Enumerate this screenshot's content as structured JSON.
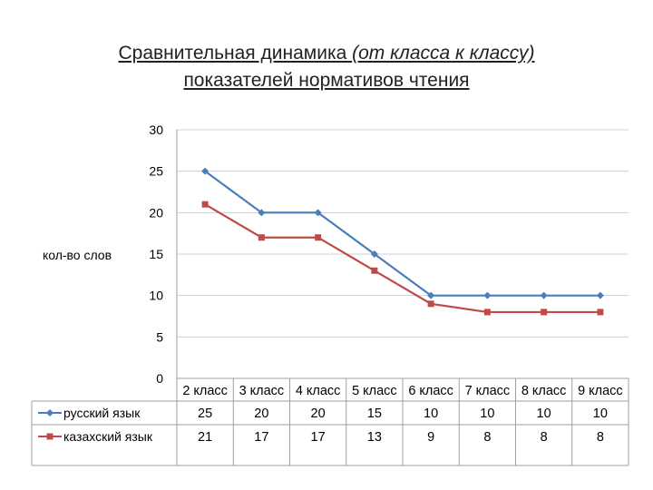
{
  "title": {
    "line1_main": "Сравнительная динамика ",
    "line1_italic": "(от класса к классу)",
    "line2": "показателей нормативов чтения"
  },
  "chart_data": {
    "type": "line",
    "ylabel": "кол-во слов",
    "ylim": [
      0,
      30
    ],
    "yticks": [
      0,
      5,
      10,
      15,
      20,
      25,
      30
    ],
    "grid": "horizontal",
    "legend": "data-table-left",
    "categories": [
      "2 класс",
      "3 класс",
      "4 класс",
      "5 класс",
      "6 класс",
      "7 класс",
      "8 класс",
      "9 класс"
    ],
    "series": [
      {
        "name": "русский язык",
        "values": [
          25,
          20,
          20,
          15,
          10,
          10,
          10,
          10
        ],
        "color": "#4a7ebb",
        "marker": "diamond"
      },
      {
        "name": "казахский язык",
        "values": [
          21,
          17,
          17,
          13,
          9,
          8,
          8,
          8
        ],
        "color": "#be4b48",
        "marker": "square"
      }
    ]
  }
}
